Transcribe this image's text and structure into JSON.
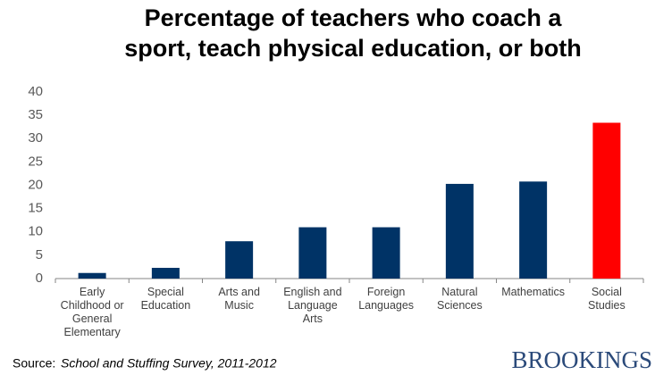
{
  "chart_data": {
    "type": "bar",
    "title": [
      "Percentage of teachers who coach a",
      "sport, teach physical education, or both"
    ],
    "categories": [
      "Early Childhood or General Elementary",
      "Special Education",
      "Arts and Music",
      "English and Language Arts",
      "Foreign Languages",
      "Natural Sciences",
      "Mathematics",
      "Social Studies"
    ],
    "values": [
      1.2,
      2.3,
      8.0,
      11.0,
      11.0,
      20.3,
      20.8,
      33.4
    ],
    "colors": [
      "#003366",
      "#003366",
      "#003366",
      "#003366",
      "#003366",
      "#003366",
      "#003366",
      "#ff0000"
    ],
    "ylim": [
      0,
      40
    ],
    "yticks": [
      0,
      5,
      10,
      15,
      20,
      25,
      30,
      35,
      40
    ],
    "grid": false
  },
  "footer": {
    "source_label": "Source:",
    "source": "School and Stuffing Survey, 2011-2012",
    "logo": "BROOKINGS"
  }
}
